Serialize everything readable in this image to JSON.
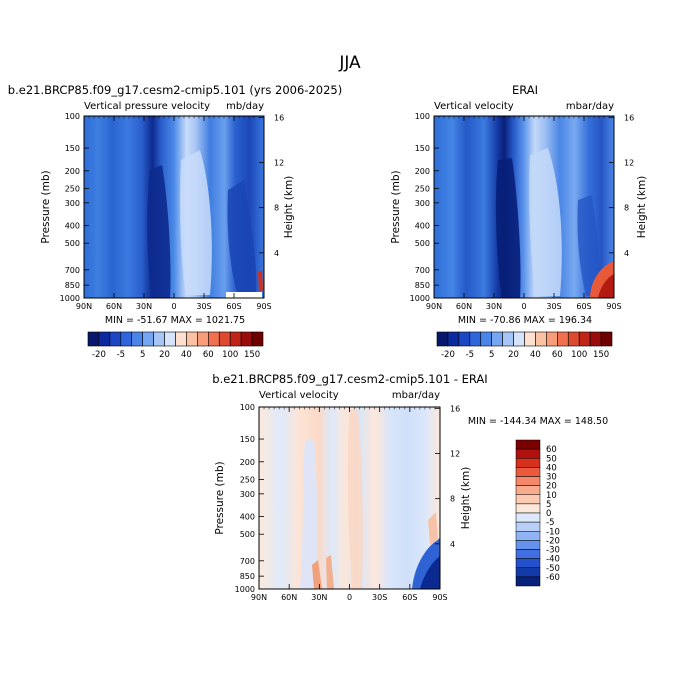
{
  "page": {
    "title": "JJA",
    "colorbar_levels": [
      "-20",
      "-5",
      "5",
      "20",
      "40",
      "60",
      "100",
      "150"
    ],
    "diff_colorbar_levels": [
      "60",
      "50",
      "40",
      "30",
      "20",
      "10",
      "5",
      "0",
      "-5",
      "-10",
      "-20",
      "-30",
      "-40",
      "-50",
      "-60"
    ]
  },
  "chart_data": [
    {
      "type": "heatmap",
      "title": "b.e21.BRCP85.f09_g17.cesm2-cmip5.101 (yrs 2006-2025)",
      "left_string": "Vertical pressure velocity",
      "right_string": "mb/day",
      "xlabel": "",
      "ylabel": "Pressure (mb)",
      "ylabel_right": "Height (km)",
      "x_ticks": [
        "90N",
        "60N",
        "30N",
        "0",
        "30S",
        "60S",
        "90S"
      ],
      "y_ticks": [
        "100",
        "150",
        "200",
        "250",
        "300",
        "400",
        "500",
        "700",
        "850",
        "1000"
      ],
      "y_right_ticks": [
        "16",
        "12",
        "8",
        "4"
      ],
      "stats": "MIN = -51.67   MAX = 1021.75",
      "min": -51.67,
      "max": 1021.75,
      "colorbar_levels": [
        -20,
        -5,
        5,
        20,
        40,
        60,
        100,
        150
      ]
    },
    {
      "type": "heatmap",
      "title": "ERAI",
      "left_string": "Vertical velocity",
      "right_string": "mbar/day",
      "xlabel": "",
      "ylabel": "Pressure (mb)",
      "ylabel_right": "Height (km)",
      "x_ticks": [
        "90N",
        "60N",
        "30N",
        "0",
        "30S",
        "60S",
        "90S"
      ],
      "y_ticks": [
        "100",
        "150",
        "200",
        "250",
        "300",
        "400",
        "500",
        "700",
        "850",
        "1000"
      ],
      "y_right_ticks": [
        "16",
        "12",
        "8",
        "4"
      ],
      "stats": "MIN = -70.86   MAX = 196.34",
      "min": -70.86,
      "max": 196.34,
      "colorbar_levels": [
        -20,
        -5,
        5,
        20,
        40,
        60,
        100,
        150
      ]
    },
    {
      "type": "heatmap",
      "title": "b.e21.BRCP85.f09_g17.cesm2-cmip5.101 - ERAI",
      "left_string": "Vertical velocity",
      "right_string": "mbar/day",
      "xlabel": "",
      "ylabel": "Pressure (mb)",
      "ylabel_right": "Height (km)",
      "x_ticks": [
        "90N",
        "60N",
        "30N",
        "0",
        "30S",
        "60S",
        "90S"
      ],
      "y_ticks": [
        "100",
        "150",
        "200",
        "250",
        "300",
        "400",
        "500",
        "700",
        "850",
        "1000"
      ],
      "y_right_ticks": [
        "16",
        "12",
        "8",
        "4"
      ],
      "stats": "MIN = -144.34   MAX = 148.50",
      "min": -144.34,
      "max": 148.5,
      "colorbar_levels": [
        -60,
        -50,
        -40,
        -30,
        -20,
        -10,
        -5,
        0,
        5,
        10,
        20,
        30,
        40,
        50,
        60
      ]
    }
  ]
}
